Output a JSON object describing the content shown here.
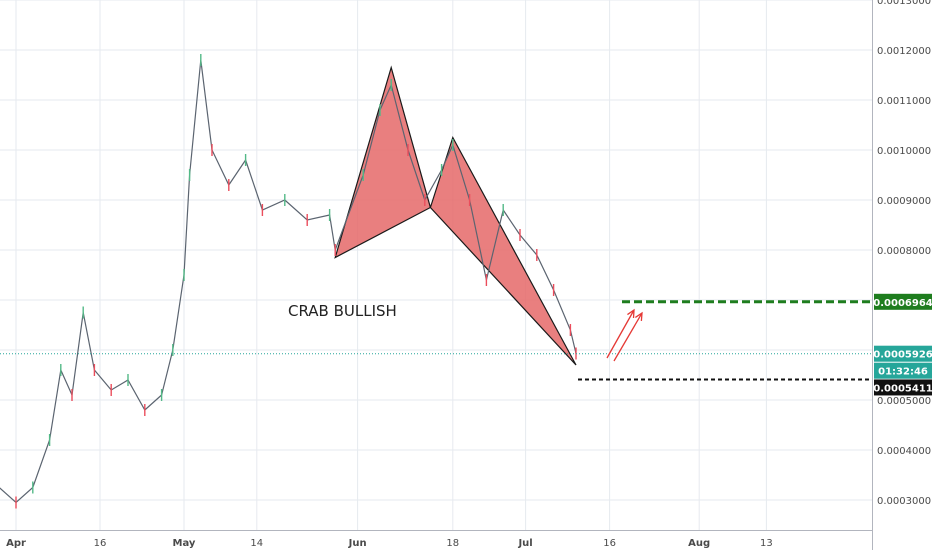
{
  "chart_data": {
    "type": "candlestick",
    "x_ticks": [
      "Apr",
      "16",
      "May",
      "14",
      "Jun",
      "18",
      "Jul",
      "16",
      "Aug",
      "13"
    ],
    "y_ticks": [
      "0.0003000",
      "0.0004000",
      "0.0005000",
      "0.0006000",
      "0.0007000",
      "0.0008000",
      "0.0009000",
      "0.0010000",
      "0.0011000",
      "0.0012000",
      "0.0013000"
    ],
    "ylim": [
      0.00024,
      0.0013
    ],
    "grid": true,
    "annotation": "CRAB BULLISH",
    "price_labels": {
      "target": "0.0006964",
      "last": "0.0005926",
      "countdown": "01:32:46",
      "stop": "0.0005411"
    },
    "levels": {
      "target": 0.0006964,
      "last": 0.0005926,
      "stop": 0.0005411
    },
    "pattern": {
      "X": {
        "date": "2018-05-28",
        "price": 0.000785
      },
      "A": {
        "date": "2018-06-07",
        "price": 0.001165
      },
      "B": {
        "date": "2018-06-14",
        "price": 0.000885
      },
      "C": {
        "date": "2018-06-18",
        "price": 0.001025
      },
      "D": {
        "date": "2018-07-10",
        "price": 0.00057
      }
    },
    "close_series": [
      {
        "date": "2018-03-28",
        "price": 0.000335
      },
      {
        "date": "2018-04-01",
        "price": 0.000295
      },
      {
        "date": "2018-04-04",
        "price": 0.000325
      },
      {
        "date": "2018-04-07",
        "price": 0.00042
      },
      {
        "date": "2018-04-09",
        "price": 0.00056
      },
      {
        "date": "2018-04-11",
        "price": 0.00051
      },
      {
        "date": "2018-04-13",
        "price": 0.000675
      },
      {
        "date": "2018-04-15",
        "price": 0.00056
      },
      {
        "date": "2018-04-18",
        "price": 0.00052
      },
      {
        "date": "2018-04-21",
        "price": 0.00054
      },
      {
        "date": "2018-04-24",
        "price": 0.00048
      },
      {
        "date": "2018-04-27",
        "price": 0.00051
      },
      {
        "date": "2018-04-29",
        "price": 0.0006
      },
      {
        "date": "2018-05-01",
        "price": 0.00075
      },
      {
        "date": "2018-05-02",
        "price": 0.00095
      },
      {
        "date": "2018-05-04",
        "price": 0.00118
      },
      {
        "date": "2018-05-06",
        "price": 0.001
      },
      {
        "date": "2018-05-09",
        "price": 0.00093
      },
      {
        "date": "2018-05-12",
        "price": 0.00098
      },
      {
        "date": "2018-05-15",
        "price": 0.00088
      },
      {
        "date": "2018-05-19",
        "price": 0.0009
      },
      {
        "date": "2018-05-23",
        "price": 0.00086
      },
      {
        "date": "2018-05-27",
        "price": 0.00087
      },
      {
        "date": "2018-05-28",
        "price": 0.0008
      },
      {
        "date": "2018-06-02",
        "price": 0.00095
      },
      {
        "date": "2018-06-05",
        "price": 0.00108
      },
      {
        "date": "2018-06-07",
        "price": 0.00113
      },
      {
        "date": "2018-06-10",
        "price": 0.001
      },
      {
        "date": "2018-06-13",
        "price": 0.0009
      },
      {
        "date": "2018-06-16",
        "price": 0.00096
      },
      {
        "date": "2018-06-18",
        "price": 0.00101
      },
      {
        "date": "2018-06-21",
        "price": 0.0009
      },
      {
        "date": "2018-06-24",
        "price": 0.00074
      },
      {
        "date": "2018-06-27",
        "price": 0.00088
      },
      {
        "date": "2018-06-30",
        "price": 0.00083
      },
      {
        "date": "2018-07-03",
        "price": 0.00079
      },
      {
        "date": "2018-07-06",
        "price": 0.00072
      },
      {
        "date": "2018-07-09",
        "price": 0.00064
      },
      {
        "date": "2018-07-10",
        "price": 0.000593
      }
    ]
  }
}
